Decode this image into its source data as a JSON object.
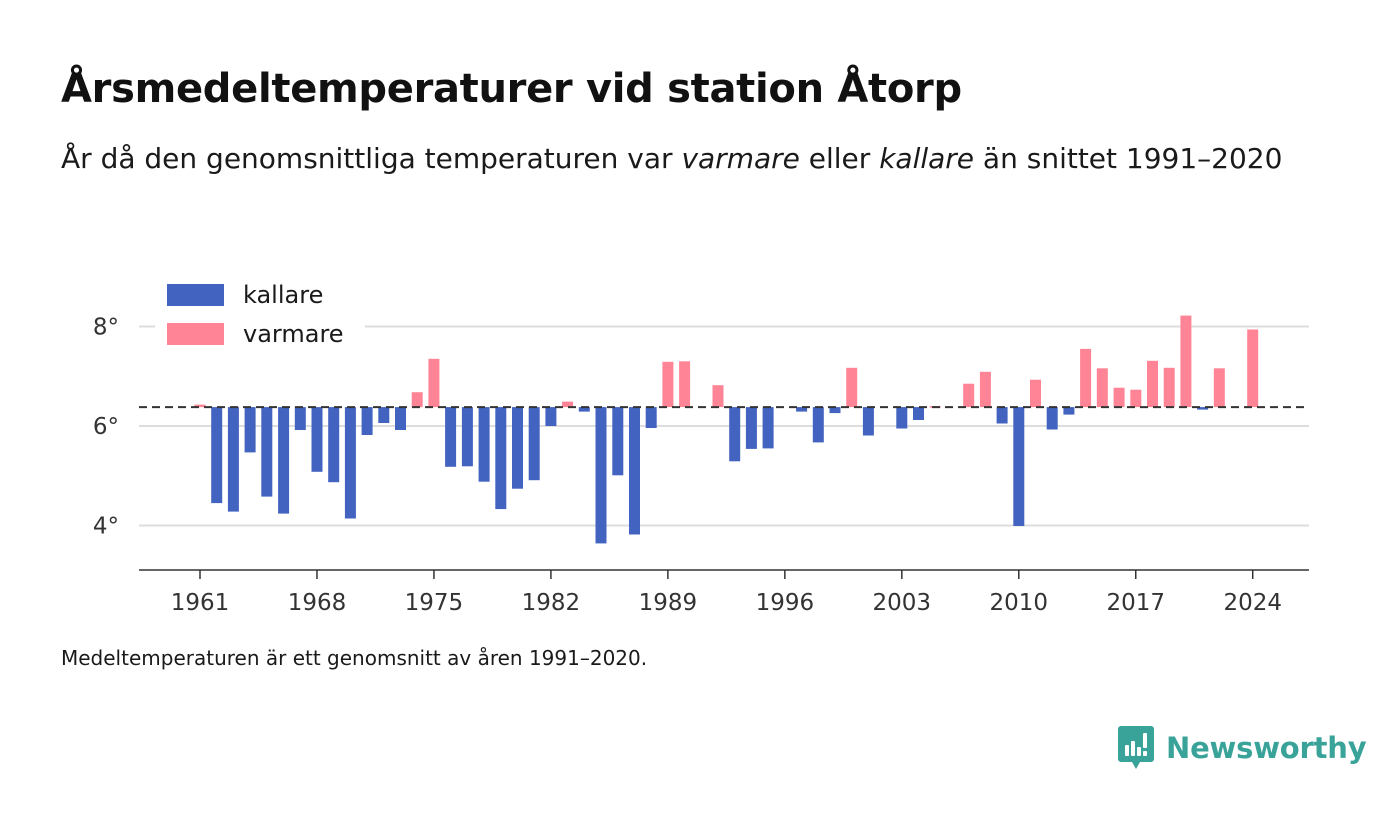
{
  "title": "Årsmedeltemperaturer vid station Åtorp",
  "subtitle": {
    "part1": "År då den genomsnittliga temperaturen var ",
    "warmer": "varmare",
    "part2": " eller ",
    "colder": "kallare",
    "part3": " än snittet 1991–2020"
  },
  "footnote": "Medeltemperaturen är ett genomsnitt av åren 1991–2020.",
  "brand": "Newsworthy",
  "colors": {
    "colder": "#4363c1",
    "warmer": "#ff8596",
    "grid": "#dddddd",
    "axis": "#333333",
    "brand": "#3aa399"
  },
  "chart_data": {
    "type": "bar",
    "baseline": 6.38,
    "baseline_style": "dashed",
    "ylim": [
      3.1,
      8.5
    ],
    "yticks": [
      4,
      6,
      8
    ],
    "ytick_labels": [
      "4°",
      "6°",
      "8°"
    ],
    "xticks": [
      1961,
      1968,
      1975,
      1982,
      1989,
      1996,
      2003,
      2010,
      2017,
      2024
    ],
    "xtick_labels": [
      "1961",
      "1968",
      "1975",
      "1982",
      "1989",
      "1996",
      "2003",
      "2010",
      "2017",
      "2024"
    ],
    "grid": true,
    "legend": {
      "position": "top-left",
      "entries": [
        {
          "label": "kallare",
          "color": "#4363c1"
        },
        {
          "label": "varmare",
          "color": "#ff8596"
        }
      ]
    },
    "series": [
      {
        "name": "kallare",
        "color": "#4363c1"
      },
      {
        "name": "varmare",
        "color": "#ff8596"
      }
    ],
    "years": [
      1961,
      1962,
      1963,
      1964,
      1965,
      1966,
      1967,
      1968,
      1969,
      1970,
      1971,
      1972,
      1973,
      1974,
      1975,
      1976,
      1977,
      1978,
      1979,
      1980,
      1981,
      1982,
      1983,
      1984,
      1985,
      1986,
      1987,
      1988,
      1989,
      1990,
      1991,
      1992,
      1993,
      1994,
      1995,
      1996,
      1997,
      1998,
      1999,
      2000,
      2001,
      2002,
      2003,
      2004,
      2005,
      2006,
      2007,
      2008,
      2009,
      2010,
      2011,
      2012,
      2013,
      2014,
      2015,
      2016,
      2017,
      2018,
      2019,
      2020,
      2021,
      2022,
      2023,
      2024
    ],
    "values": [
      6.43,
      4.45,
      4.28,
      5.47,
      4.58,
      4.24,
      5.92,
      5.08,
      4.87,
      4.14,
      5.82,
      6.06,
      5.92,
      6.68,
      7.35,
      5.18,
      5.19,
      4.88,
      4.33,
      4.74,
      4.91,
      6.0,
      6.49,
      6.29,
      3.64,
      5.01,
      3.82,
      5.96,
      7.29,
      7.3,
      6.38,
      6.82,
      5.29,
      5.54,
      5.55,
      6.38,
      6.29,
      5.67,
      6.26,
      7.17,
      5.81,
      6.38,
      5.95,
      6.12,
      6.4,
      6.38,
      6.85,
      7.09,
      6.05,
      3.99,
      6.93,
      5.93,
      6.23,
      7.55,
      7.16,
      6.77,
      6.73,
      7.31,
      7.17,
      8.22,
      6.33,
      7.16,
      6.38,
      7.94
    ]
  }
}
